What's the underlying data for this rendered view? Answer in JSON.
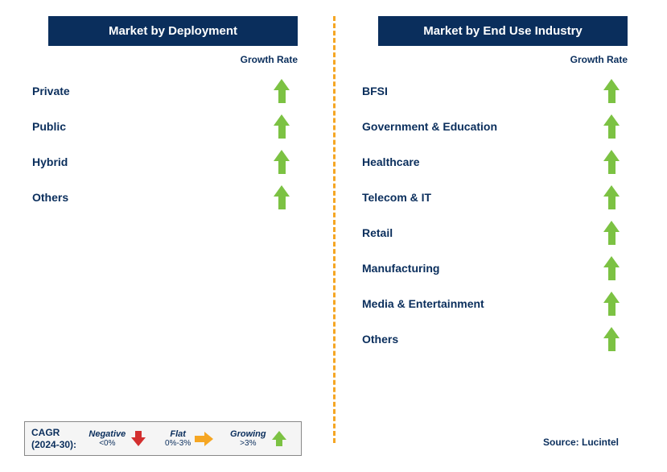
{
  "colors": {
    "header_bg": "#0a2e5c",
    "header_text": "#ffffff",
    "label_text": "#0a2e5c",
    "divider": "#f5a623",
    "arrow_growing": "#7cc243",
    "arrow_flat": "#f5a623",
    "arrow_negative": "#d32f2f",
    "legend_bg": "#f5f5f5",
    "legend_border": "#888888",
    "background": "#ffffff"
  },
  "left": {
    "title": "Market by Deployment",
    "growth_label": "Growth Rate",
    "rows": [
      {
        "label": "Private",
        "growth": "growing"
      },
      {
        "label": "Public",
        "growth": "growing"
      },
      {
        "label": "Hybrid",
        "growth": "growing"
      },
      {
        "label": "Others",
        "growth": "growing"
      }
    ]
  },
  "right": {
    "title": "Market by End Use Industry",
    "growth_label": "Growth Rate",
    "rows": [
      {
        "label": "BFSI",
        "growth": "growing"
      },
      {
        "label": "Government & Education",
        "growth": "growing"
      },
      {
        "label": "Healthcare",
        "growth": "growing"
      },
      {
        "label": "Telecom & IT",
        "growth": "growing"
      },
      {
        "label": "Retail",
        "growth": "growing"
      },
      {
        "label": "Manufacturing",
        "growth": "growing"
      },
      {
        "label": "Media & Entertainment",
        "growth": "growing"
      },
      {
        "label": "Others",
        "growth": "growing"
      }
    ]
  },
  "legend": {
    "cagr_line1": "CAGR",
    "cagr_line2": "(2024-30):",
    "items": [
      {
        "label": "Negative",
        "range": "<0%",
        "shape": "down",
        "color": "#d32f2f"
      },
      {
        "label": "Flat",
        "range": "0%-3%",
        "shape": "right",
        "color": "#f5a623"
      },
      {
        "label": "Growing",
        "range": ">3%",
        "shape": "up",
        "color": "#7cc243"
      }
    ]
  },
  "source": "Source: Lucintel"
}
